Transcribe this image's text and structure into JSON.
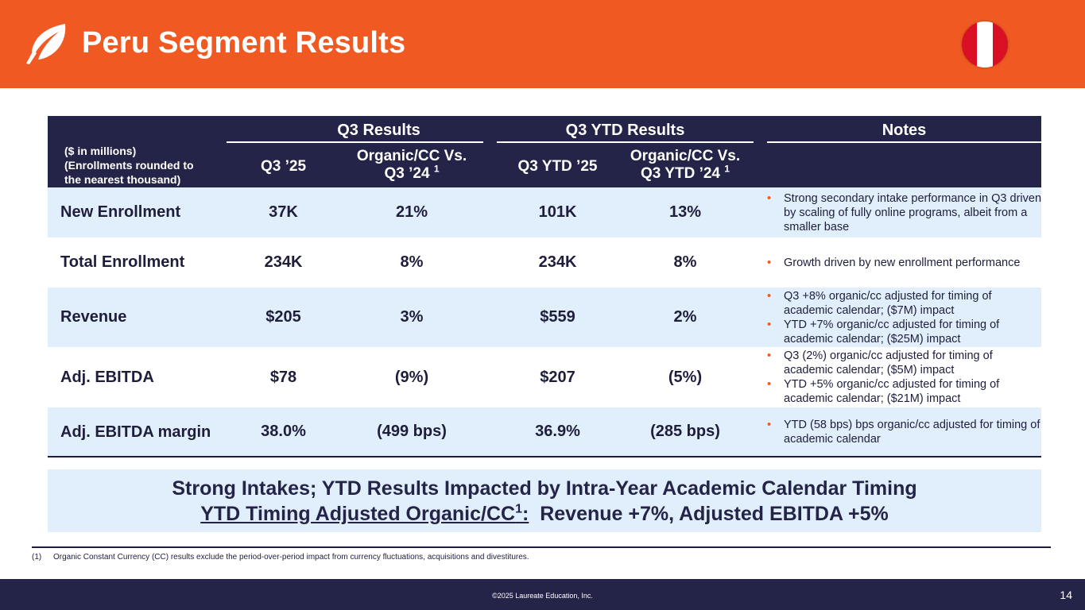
{
  "header": {
    "title": "Peru Segment Results",
    "logo_icon": "leaf-logo-icon",
    "flag_icon": "peru-flag-icon",
    "accent_color": "#f05a22",
    "navy_color": "#242448"
  },
  "table": {
    "groups": {
      "q3": "Q3 Results",
      "ytd": "Q3 YTD Results",
      "notes": "Notes"
    },
    "units_note": {
      "line1": "($ in millions)",
      "line2": "(Enrollments rounded to",
      "line3": "the nearest thousand)"
    },
    "columns": {
      "q3": "Q3 ’25",
      "q3_organic_line1": "Organic/CC Vs.",
      "q3_organic_line2": "Q3 ’24",
      "q3_organic_ref": "1",
      "ytd": "Q3 YTD ’25",
      "ytd_organic_line1": "Organic/CC Vs.",
      "ytd_organic_line2": "Q3 YTD ’24",
      "ytd_organic_ref": "1"
    },
    "rows": [
      {
        "label": "New Enrollment",
        "q3": "37K",
        "q3_organic": "21%",
        "ytd": "101K",
        "ytd_organic": "13%",
        "notes": [
          "Strong secondary intake performance in Q3 driven by scaling of fully online programs, albeit from a smaller base"
        ]
      },
      {
        "label": "Total Enrollment",
        "q3": "234K",
        "q3_organic": "8%",
        "ytd": "234K",
        "ytd_organic": "8%",
        "notes": [
          "Growth driven by new enrollment performance"
        ]
      },
      {
        "label": "Revenue",
        "q3": "$205",
        "q3_organic": "3%",
        "ytd": "$559",
        "ytd_organic": "2%",
        "notes": [
          "Q3 +8% organic/cc adjusted for timing of academic calendar; ($7M) impact",
          "YTD +7% organic/cc adjusted for timing of academic calendar; ($25M) impact"
        ]
      },
      {
        "label": "Adj. EBITDA",
        "q3": "$78",
        "q3_organic": "(9%)",
        "ytd": "$207",
        "ytd_organic": "(5%)",
        "notes": [
          "Q3 (2%) organic/cc adjusted for timing of academic calendar; ($5M) impact",
          "YTD +5% organic/cc adjusted for timing of academic calendar; ($21M) impact"
        ]
      },
      {
        "label": "Adj. EBITDA margin",
        "q3": "38.0%",
        "q3_organic": "(499 bps)",
        "ytd": "36.9%",
        "ytd_organic": "(285 bps)",
        "notes": [
          "YTD (58 bps) bps organic/cc adjusted for timing of academic calendar"
        ]
      }
    ]
  },
  "callout": {
    "line1": "Strong Intakes; YTD Results Impacted by Intra-Year Academic Calendar Timing",
    "line2_underlined": "YTD Timing Adjusted Organic/CC",
    "line2_ref": "1",
    "line2_colon": ":",
    "line2_rest": "  Revenue +7%, Adjusted EBITDA +5%"
  },
  "footnote": {
    "number": "(1)",
    "text": "Organic Constant Currency (CC) results exclude the period-over-period impact from currency fluctuations, acquisitions and divestitures."
  },
  "footer": {
    "copyright": "©2025 Laureate Education, Inc.",
    "page_number": "14"
  }
}
